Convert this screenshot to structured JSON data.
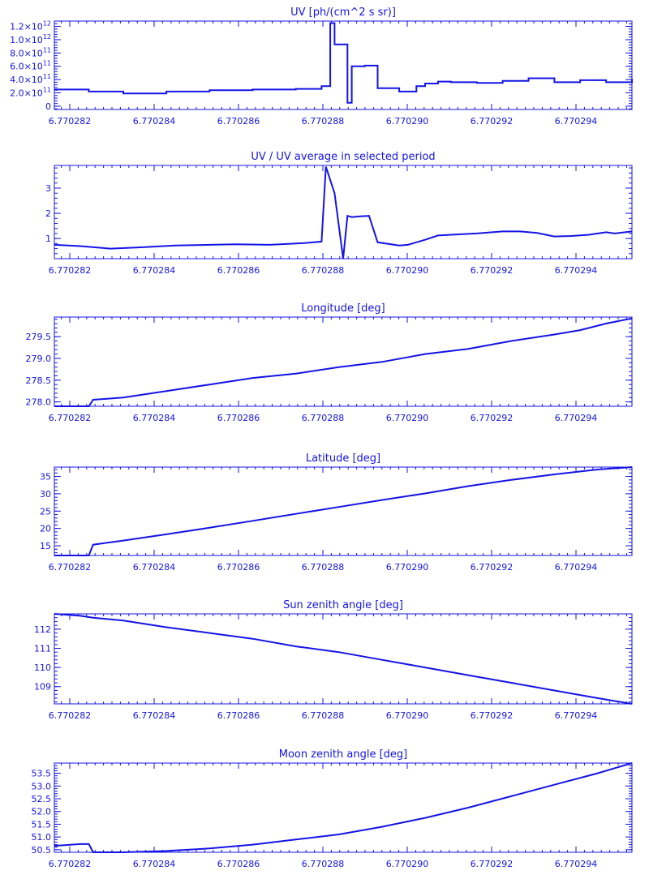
{
  "color": "#1414e6",
  "x_ticks": [
    "6.770282",
    "6.770284",
    "6.770286",
    "6.770288",
    "6.770290",
    "6.770292",
    "6.770294"
  ],
  "chart_data": [
    {
      "type": "line",
      "step": true,
      "title": "UV [ph/(cm^2 s sr)]",
      "y_scale_note": "tick labels shown as ×10^n",
      "yticks": [
        {
          "v": 0,
          "m": "0",
          "e": ""
        },
        {
          "v": 200000000000.0,
          "m": "2.0×10",
          "e": "11"
        },
        {
          "v": 400000000000.0,
          "m": "4.0×10",
          "e": "11"
        },
        {
          "v": 600000000000.0,
          "m": "6.0×10",
          "e": "11"
        },
        {
          "v": 800000000000.0,
          "m": "8.0×10",
          "e": "11"
        },
        {
          "v": 1000000000000.0,
          "m": "1.0×10",
          "e": "12"
        },
        {
          "v": 1200000000000.0,
          "m": "1.2×10",
          "e": "12"
        }
      ],
      "ylim": [
        -50000000000.0,
        1280000000000.0
      ],
      "xlim": [
        6.770282,
        6.7702954
      ],
      "x": [
        6.770282,
        6.7702828,
        6.7702836,
        6.7702846,
        6.7702856,
        6.7702866,
        6.7702876,
        6.7702882,
        6.7702884,
        6.7702885,
        6.7702888,
        6.7702889,
        6.7702892,
        6.7702895,
        6.77029,
        6.7702904,
        6.7702906,
        6.7702909,
        6.7702912,
        6.7702918,
        6.7702924,
        6.770293,
        6.7702936,
        6.7702942,
        6.7702948,
        6.7702954
      ],
      "y": [
        250000000000.0,
        220000000000.0,
        190000000000.0,
        220000000000.0,
        240000000000.0,
        250000000000.0,
        260000000000.0,
        300000000000.0,
        1250000000000.0,
        930000000000.0,
        50000000000.0,
        600000000000.0,
        610000000000.0,
        270000000000.0,
        220000000000.0,
        300000000000.0,
        340000000000.0,
        370000000000.0,
        360000000000.0,
        350000000000.0,
        380000000000.0,
        420000000000.0,
        360000000000.0,
        390000000000.0,
        360000000000.0,
        410000000000.0
      ]
    },
    {
      "type": "line",
      "title": "UV / UV average in selected period",
      "yticks": [
        {
          "v": 1,
          "m": "1",
          "e": ""
        },
        {
          "v": 2,
          "m": "2",
          "e": ""
        },
        {
          "v": 3,
          "m": "3",
          "e": ""
        }
      ],
      "ylim": [
        0.2,
        3.9
      ],
      "xlim": [
        6.770282,
        6.7702954
      ],
      "x": [
        6.770282,
        6.7702826,
        6.7702833,
        6.770284,
        6.7702848,
        6.7702856,
        6.7702862,
        6.770287,
        6.7702878,
        6.7702882,
        6.7702883,
        6.7702885,
        6.7702887,
        6.7702888,
        6.7702889,
        6.7702891,
        6.7702893,
        6.7702895,
        6.77029,
        6.7702902,
        6.7702906,
        6.7702909,
        6.7702912,
        6.7702918,
        6.7702924,
        6.7702928,
        6.7702932,
        6.7702936,
        6.770294,
        6.7702944,
        6.7702948,
        6.770295,
        6.7702954
      ],
      "y": [
        0.75,
        0.7,
        0.6,
        0.65,
        0.72,
        0.75,
        0.77,
        0.75,
        0.82,
        0.88,
        3.85,
        2.8,
        0.2,
        1.9,
        1.85,
        1.88,
        1.9,
        0.85,
        0.72,
        0.75,
        0.95,
        1.12,
        1.15,
        1.2,
        1.28,
        1.28,
        1.22,
        1.08,
        1.1,
        1.15,
        1.25,
        1.2,
        1.28
      ]
    },
    {
      "type": "line",
      "title": "Longitude [deg]",
      "yticks": [
        {
          "v": 278.0,
          "m": "278.0",
          "e": ""
        },
        {
          "v": 278.5,
          "m": "278.5",
          "e": ""
        },
        {
          "v": 279.0,
          "m": "279.0",
          "e": ""
        },
        {
          "v": 279.5,
          "m": "279.5",
          "e": ""
        }
      ],
      "ylim": [
        277.9,
        279.95
      ],
      "xlim": [
        6.770282,
        6.7702954
      ],
      "x": [
        6.770282,
        6.7702828,
        6.7702829,
        6.7702836,
        6.7702846,
        6.7702856,
        6.7702866,
        6.7702876,
        6.7702886,
        6.7702896,
        6.7702906,
        6.7702916,
        6.7702926,
        6.7702936,
        6.7702942,
        6.7702948,
        6.7702954
      ],
      "y": [
        277.9,
        277.9,
        278.05,
        278.1,
        278.25,
        278.4,
        278.55,
        278.65,
        278.8,
        278.92,
        279.1,
        279.22,
        279.4,
        279.55,
        279.65,
        279.8,
        279.92
      ]
    },
    {
      "type": "line",
      "title": "Latitude [deg]",
      "yticks": [
        {
          "v": 15,
          "m": "15",
          "e": ""
        },
        {
          "v": 20,
          "m": "20",
          "e": ""
        },
        {
          "v": 25,
          "m": "25",
          "e": ""
        },
        {
          "v": 30,
          "m": "30",
          "e": ""
        },
        {
          "v": 35,
          "m": "35",
          "e": ""
        }
      ],
      "ylim": [
        12.2,
        37.7
      ],
      "xlim": [
        6.770282,
        6.7702954
      ],
      "x": [
        6.770282,
        6.7702828,
        6.7702829,
        6.7702836,
        6.7702846,
        6.7702856,
        6.7702866,
        6.7702876,
        6.7702886,
        6.7702896,
        6.7702906,
        6.7702916,
        6.7702926,
        6.7702936,
        6.7702946,
        6.7702954
      ],
      "y": [
        12.2,
        12.2,
        15.3,
        16.5,
        18.3,
        20.2,
        22.2,
        24.2,
        26.2,
        28.2,
        30.1,
        32.2,
        34.0,
        35.6,
        37.0,
        37.7
      ]
    },
    {
      "type": "line",
      "title": "Sun zenith angle [deg]",
      "yticks": [
        {
          "v": 109,
          "m": "109",
          "e": ""
        },
        {
          "v": 110,
          "m": "110",
          "e": ""
        },
        {
          "v": 111,
          "m": "111",
          "e": ""
        },
        {
          "v": 112,
          "m": "112",
          "e": ""
        }
      ],
      "ylim": [
        108.1,
        112.8
      ],
      "xlim": [
        6.770282,
        6.7702954
      ],
      "x": [
        6.770282,
        6.7702826,
        6.7702829,
        6.7702836,
        6.7702846,
        6.7702856,
        6.7702866,
        6.7702876,
        6.7702886,
        6.7702896,
        6.7702906,
        6.7702916,
        6.7702926,
        6.7702936,
        6.7702946,
        6.7702954
      ],
      "y": [
        112.8,
        112.7,
        112.6,
        112.45,
        112.1,
        111.8,
        111.5,
        111.1,
        110.8,
        110.4,
        110.0,
        109.6,
        109.2,
        108.8,
        108.4,
        108.1
      ]
    },
    {
      "type": "line",
      "title": "Moon zenith angle [deg]",
      "yticks": [
        {
          "v": 50.5,
          "m": "50.5",
          "e": ""
        },
        {
          "v": 51.0,
          "m": "51.0",
          "e": ""
        },
        {
          "v": 51.5,
          "m": "51.5",
          "e": ""
        },
        {
          "v": 52.0,
          "m": "52.0",
          "e": ""
        },
        {
          "v": 52.5,
          "m": "52.5",
          "e": ""
        },
        {
          "v": 53.0,
          "m": "53.0",
          "e": ""
        },
        {
          "v": 53.5,
          "m": "53.5",
          "e": ""
        }
      ],
      "ylim": [
        50.4,
        53.9
      ],
      "xlim": [
        6.770282,
        6.7702954
      ],
      "x": [
        6.770282,
        6.7702826,
        6.7702828,
        6.7702829,
        6.7702836,
        6.7702846,
        6.7702856,
        6.7702866,
        6.7702876,
        6.7702886,
        6.7702896,
        6.7702906,
        6.7702916,
        6.7702926,
        6.7702936,
        6.7702946,
        6.7702954
      ],
      "y": [
        50.65,
        50.72,
        50.72,
        50.4,
        50.4,
        50.45,
        50.55,
        50.7,
        50.9,
        51.1,
        51.4,
        51.75,
        52.15,
        52.6,
        53.05,
        53.5,
        53.9
      ]
    }
  ]
}
